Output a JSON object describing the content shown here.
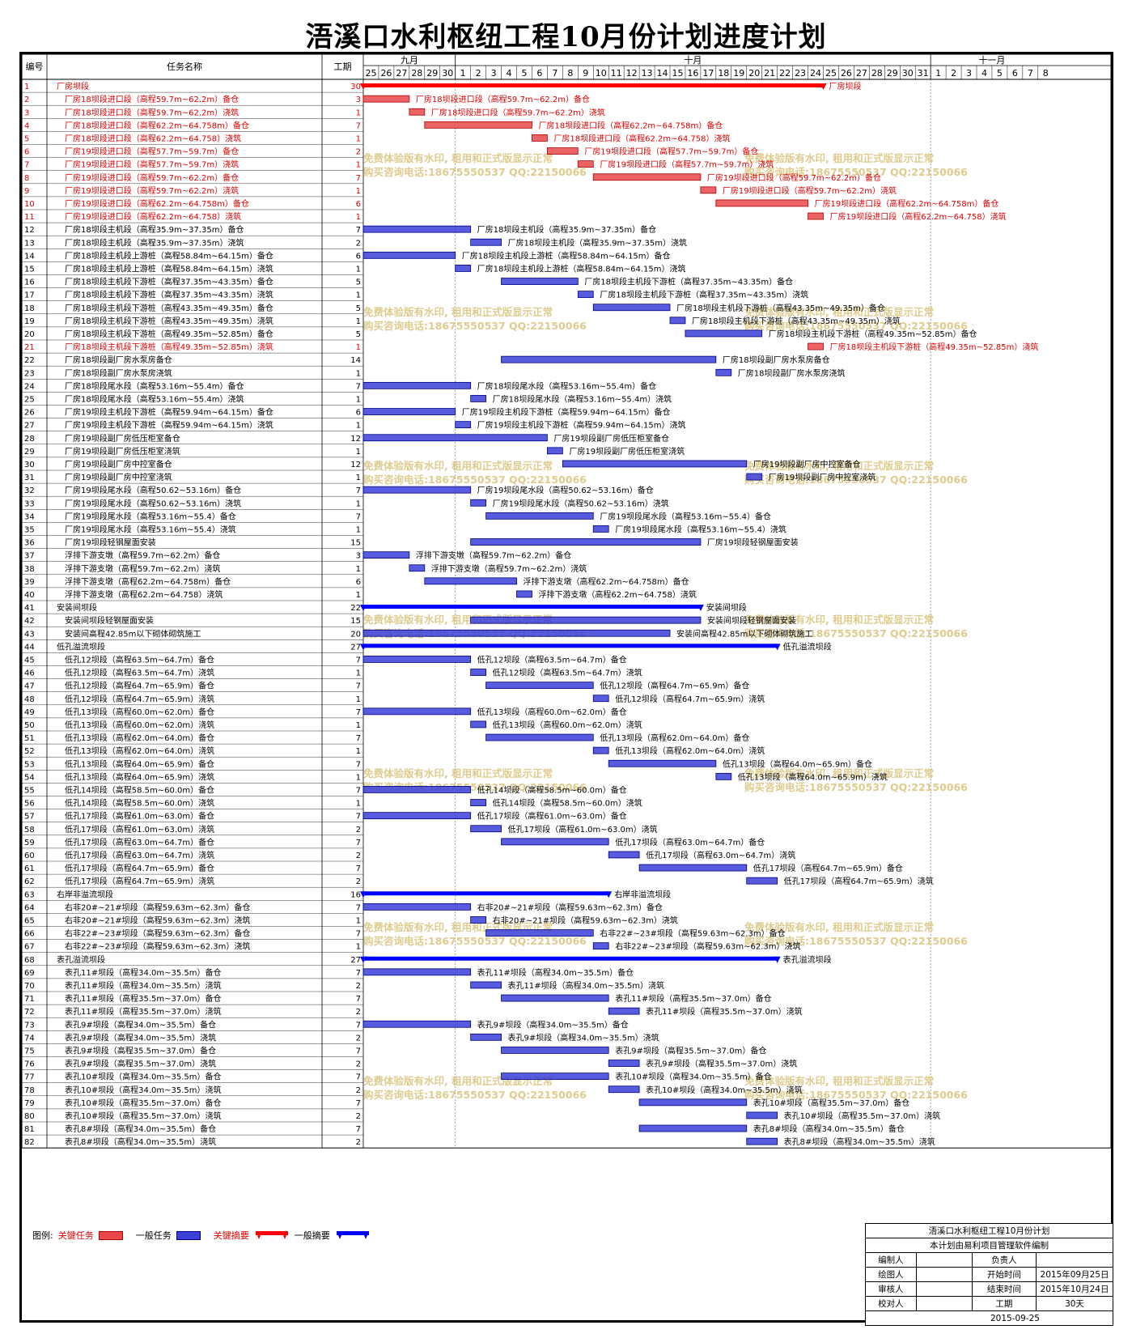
{
  "title": "浯溪口水利枢纽工程10月份计划进度计划",
  "header": {
    "col_id": "编号",
    "col_name": "任务名称",
    "col_duration": "工期",
    "months": [
      {
        "label": "九月",
        "start_day": 0,
        "len": 6
      },
      {
        "label": "十月",
        "start_day": 6,
        "len": 31
      },
      {
        "label": "十一月",
        "start_day": 37,
        "len": 8
      }
    ],
    "days": [
      "25",
      "26",
      "27",
      "28",
      "29",
      "30",
      "1",
      "2",
      "3",
      "4",
      "5",
      "6",
      "7",
      "8",
      "9",
      "10",
      "11",
      "12",
      "13",
      "14",
      "15",
      "16",
      "17",
      "18",
      "19",
      "20",
      "21",
      "22",
      "23",
      "24",
      "25",
      "26",
      "27",
      "28",
      "29",
      "30",
      "31",
      "1",
      "2",
      "3",
      "4",
      "5",
      "6",
      "7",
      "8"
    ]
  },
  "colors": {
    "critical_task": "#e8484a",
    "normal_task": "#3a3fd8",
    "critical_summary": "#ff0000",
    "normal_summary": "#0000ff",
    "critical_text": "#e00000",
    "normal_text": "#000000",
    "watermark": "#d9c27a"
  },
  "watermark": {
    "line1": "免费体验版有水印, 租用和正式版显示正常",
    "line2": "购买咨询电话:18675550537 QQ:22150066"
  },
  "chart_data": {
    "type": "gantt",
    "title": "浯溪口水利枢纽工程10月份计划进度计划",
    "start_date": "2015-09-25",
    "tasks": [
      {
        "id": "1",
        "name": "厂房坝段",
        "dur": 30,
        "start": 0,
        "len": 30,
        "kind": "summary",
        "crit": true,
        "indent": 0,
        "label": "厂房坝段"
      },
      {
        "id": "2",
        "name": "厂房18坝段进口段（高程59.7m~62.2m）备仓",
        "dur": 3,
        "start": 0,
        "len": 3,
        "kind": "task",
        "crit": true,
        "indent": 1
      },
      {
        "id": "3",
        "name": "厂房18坝段进口段（高程59.7m~62.2m）浇筑",
        "dur": 1,
        "start": 3,
        "len": 1,
        "kind": "task",
        "crit": true,
        "indent": 1
      },
      {
        "id": "4",
        "name": "厂房18坝段进口段（高程62.2m~64.758m）备仓",
        "dur": 7,
        "start": 4,
        "len": 7,
        "kind": "task",
        "crit": true,
        "indent": 1
      },
      {
        "id": "5",
        "name": "厂房18坝段进口段（高程62.2m~64.758）浇筑",
        "dur": 1,
        "start": 11,
        "len": 1,
        "kind": "task",
        "crit": true,
        "indent": 1
      },
      {
        "id": "6",
        "name": "厂房19坝段进口段（高程57.7m~59.7m）备仓",
        "dur": 2,
        "start": 12,
        "len": 2,
        "kind": "task",
        "crit": true,
        "indent": 1
      },
      {
        "id": "7",
        "name": "厂房19坝段进口段（高程57.7m~59.7m）浇筑",
        "dur": 1,
        "start": 14,
        "len": 1,
        "kind": "task",
        "crit": true,
        "indent": 1
      },
      {
        "id": "8",
        "name": "厂房19坝段进口段（高程59.7m~62.2m）备仓",
        "dur": 7,
        "start": 15,
        "len": 7,
        "kind": "task",
        "crit": true,
        "indent": 1
      },
      {
        "id": "9",
        "name": "厂房19坝段进口段（高程59.7m~62.2m）浇筑",
        "dur": 1,
        "start": 22,
        "len": 1,
        "kind": "task",
        "crit": true,
        "indent": 1
      },
      {
        "id": "10",
        "name": "厂房19坝段进口段（高程62.2m~64.758m）备仓",
        "dur": 6,
        "start": 23,
        "len": 6,
        "kind": "task",
        "crit": true,
        "indent": 1
      },
      {
        "id": "11",
        "name": "厂房19坝段进口段（高程62.2m~64.758）浇筑",
        "dur": 1,
        "start": 29,
        "len": 1,
        "kind": "task",
        "crit": true,
        "indent": 1
      },
      {
        "id": "12",
        "name": "厂房18坝段主机段（高程35.9m~37.35m）备仓",
        "dur": 7,
        "start": 0,
        "len": 7,
        "kind": "task",
        "crit": false,
        "indent": 1
      },
      {
        "id": "13",
        "name": "厂房18坝段主机段（高程35.9m~37.35m）浇筑",
        "dur": 2,
        "start": 7,
        "len": 2,
        "kind": "task",
        "crit": false,
        "indent": 1
      },
      {
        "id": "14",
        "name": "厂房18坝段主机段上游桩（高程58.84m~64.15m）备仓",
        "dur": 6,
        "start": 0,
        "len": 6,
        "kind": "task",
        "crit": false,
        "indent": 1
      },
      {
        "id": "15",
        "name": "厂房18坝段主机段上游桩（高程58.84m~64.15m）浇筑",
        "dur": 1,
        "start": 6,
        "len": 1,
        "kind": "task",
        "crit": false,
        "indent": 1
      },
      {
        "id": "16",
        "name": "厂房18坝段主机段下游桩（高程37.35m~43.35m）备仓",
        "dur": 5,
        "start": 9,
        "len": 5,
        "kind": "task",
        "crit": false,
        "indent": 1
      },
      {
        "id": "17",
        "name": "厂房18坝段主机段下游桩（高程37.35m~43.35m）浇筑",
        "dur": 1,
        "start": 14,
        "len": 1,
        "kind": "task",
        "crit": false,
        "indent": 1
      },
      {
        "id": "18",
        "name": "厂房18坝段主机段下游桩（高程43.35m~49.35m）备仓",
        "dur": 5,
        "start": 15,
        "len": 5,
        "kind": "task",
        "crit": false,
        "indent": 1
      },
      {
        "id": "19",
        "name": "厂房18坝段主机段下游桩（高程43.35m~49.35m）浇筑",
        "dur": 1,
        "start": 20,
        "len": 1,
        "kind": "task",
        "crit": false,
        "indent": 1
      },
      {
        "id": "20",
        "name": "厂房18坝段主机段下游桩（高程49.35m~52.85m）备仓",
        "dur": 5,
        "start": 21,
        "len": 5,
        "kind": "task",
        "crit": false,
        "indent": 1
      },
      {
        "id": "21",
        "name": "厂房18坝段主机段下游桩（高程49.35m~52.85m）浇筑",
        "dur": 1,
        "start": 29,
        "len": 1,
        "kind": "task",
        "crit": true,
        "indent": 1
      },
      {
        "id": "22",
        "name": "厂房18坝段副厂房水泵房备仓",
        "dur": 14,
        "start": 9,
        "len": 14,
        "kind": "task",
        "crit": false,
        "indent": 1
      },
      {
        "id": "23",
        "name": "厂房18坝段副厂房水泵房浇筑",
        "dur": 1,
        "start": 23,
        "len": 1,
        "kind": "task",
        "crit": false,
        "indent": 1
      },
      {
        "id": "24",
        "name": "厂房18坝段尾水段（高程53.16m~55.4m）备仓",
        "dur": 7,
        "start": 0,
        "len": 7,
        "kind": "task",
        "crit": false,
        "indent": 1
      },
      {
        "id": "25",
        "name": "厂房18坝段尾水段（高程53.16m~55.4m）浇筑",
        "dur": 1,
        "start": 7,
        "len": 1,
        "kind": "task",
        "crit": false,
        "indent": 1
      },
      {
        "id": "26",
        "name": "厂房19坝段主机段下游桩（高程59.94m~64.15m）备仓",
        "dur": 6,
        "start": 0,
        "len": 6,
        "kind": "task",
        "crit": false,
        "indent": 1
      },
      {
        "id": "27",
        "name": "厂房19坝段主机段下游桩（高程59.94m~64.15m）浇筑",
        "dur": 1,
        "start": 6,
        "len": 1,
        "kind": "task",
        "crit": false,
        "indent": 1
      },
      {
        "id": "28",
        "name": "厂房19坝段副厂房低压柜室备仓",
        "dur": 12,
        "start": 0,
        "len": 12,
        "kind": "task",
        "crit": false,
        "indent": 1
      },
      {
        "id": "29",
        "name": "厂房19坝段副厂房低压柜室浇筑",
        "dur": 1,
        "start": 12,
        "len": 1,
        "kind": "task",
        "crit": false,
        "indent": 1
      },
      {
        "id": "30",
        "name": "厂房19坝段副厂房中控室备仓",
        "dur": 12,
        "start": 13,
        "len": 12,
        "kind": "task",
        "crit": false,
        "indent": 1
      },
      {
        "id": "31",
        "name": "厂房19坝段副厂房中控室浇筑",
        "dur": 1,
        "start": 25,
        "len": 1,
        "kind": "task",
        "crit": false,
        "indent": 1
      },
      {
        "id": "32",
        "name": "厂房19坝段尾水段（高程50.62~53.16m）备仓",
        "dur": 7,
        "start": 0,
        "len": 7,
        "kind": "task",
        "crit": false,
        "indent": 1
      },
      {
        "id": "33",
        "name": "厂房19坝段尾水段（高程50.62~53.16m）浇筑",
        "dur": 1,
        "start": 7,
        "len": 1,
        "kind": "task",
        "crit": false,
        "indent": 1
      },
      {
        "id": "34",
        "name": "厂房19坝段尾水段（高程53.16m~55.4）备仓",
        "dur": 7,
        "start": 8,
        "len": 7,
        "kind": "task",
        "crit": false,
        "indent": 1
      },
      {
        "id": "35",
        "name": "厂房19坝段尾水段（高程53.16m~55.4）浇筑",
        "dur": 1,
        "start": 15,
        "len": 1,
        "kind": "task",
        "crit": false,
        "indent": 1
      },
      {
        "id": "36",
        "name": "厂房19坝段轻钢屋面安装",
        "dur": 15,
        "start": 7,
        "len": 15,
        "kind": "task",
        "crit": false,
        "indent": 1
      },
      {
        "id": "37",
        "name": "浮排下游支墩（高程59.7m~62.2m）备仓",
        "dur": 3,
        "start": 0,
        "len": 3,
        "kind": "task",
        "crit": false,
        "indent": 1
      },
      {
        "id": "38",
        "name": "浮排下游支墩（高程59.7m~62.2m）浇筑",
        "dur": 1,
        "start": 3,
        "len": 1,
        "kind": "task",
        "crit": false,
        "indent": 1
      },
      {
        "id": "39",
        "name": "浮排下游支墩（高程62.2m~64.758m）备仓",
        "dur": 6,
        "start": 4,
        "len": 6,
        "kind": "task",
        "crit": false,
        "indent": 1
      },
      {
        "id": "40",
        "name": "浮排下游支墩（高程62.2m~64.758）浇筑",
        "dur": 1,
        "start": 10,
        "len": 1,
        "kind": "task",
        "crit": false,
        "indent": 1
      },
      {
        "id": "41",
        "name": "安装间坝段",
        "dur": 22,
        "start": 0,
        "len": 22,
        "kind": "summary",
        "crit": false,
        "indent": 0,
        "label": "安装间坝段"
      },
      {
        "id": "42",
        "name": "安装间坝段轻钢屋面安装",
        "dur": 15,
        "start": 7,
        "len": 15,
        "kind": "task",
        "crit": false,
        "indent": 1
      },
      {
        "id": "43",
        "name": "安装间高程42.85m以下砌体砌筑施工",
        "dur": 20,
        "start": 0,
        "len": 20,
        "kind": "task",
        "crit": false,
        "indent": 1
      },
      {
        "id": "44",
        "name": "低孔溢流坝段",
        "dur": 27,
        "start": 0,
        "len": 27,
        "kind": "summary",
        "crit": false,
        "indent": 0,
        "label": "低孔溢流坝段"
      },
      {
        "id": "45",
        "name": "低孔12坝段（高程63.5m~64.7m）备仓",
        "dur": 7,
        "start": 0,
        "len": 7,
        "kind": "task",
        "crit": false,
        "indent": 1
      },
      {
        "id": "46",
        "name": "低孔12坝段（高程63.5m~64.7m）浇筑",
        "dur": 1,
        "start": 7,
        "len": 1,
        "kind": "task",
        "crit": false,
        "indent": 1
      },
      {
        "id": "47",
        "name": "低孔12坝段（高程64.7m~65.9m）备仓",
        "dur": 7,
        "start": 8,
        "len": 7,
        "kind": "task",
        "crit": false,
        "indent": 1
      },
      {
        "id": "48",
        "name": "低孔12坝段（高程64.7m~65.9m）浇筑",
        "dur": 1,
        "start": 15,
        "len": 1,
        "kind": "task",
        "crit": false,
        "indent": 1
      },
      {
        "id": "49",
        "name": "低孔13坝段（高程60.0m~62.0m）备仓",
        "dur": 7,
        "start": 0,
        "len": 7,
        "kind": "task",
        "crit": false,
        "indent": 1
      },
      {
        "id": "50",
        "name": "低孔13坝段（高程60.0m~62.0m）浇筑",
        "dur": 1,
        "start": 7,
        "len": 1,
        "kind": "task",
        "crit": false,
        "indent": 1
      },
      {
        "id": "51",
        "name": "低孔13坝段（高程62.0m~64.0m）备仓",
        "dur": 7,
        "start": 8,
        "len": 7,
        "kind": "task",
        "crit": false,
        "indent": 1
      },
      {
        "id": "52",
        "name": "低孔13坝段（高程62.0m~64.0m）浇筑",
        "dur": 1,
        "start": 15,
        "len": 1,
        "kind": "task",
        "crit": false,
        "indent": 1
      },
      {
        "id": "53",
        "name": "低孔13坝段（高程64.0m~65.9m）备仓",
        "dur": 7,
        "start": 16,
        "len": 7,
        "kind": "task",
        "crit": false,
        "indent": 1
      },
      {
        "id": "54",
        "name": "低孔13坝段（高程64.0m~65.9m）浇筑",
        "dur": 1,
        "start": 23,
        "len": 1,
        "kind": "task",
        "crit": false,
        "indent": 1
      },
      {
        "id": "55",
        "name": "低孔14坝段（高程58.5m~60.0m）备仓",
        "dur": 7,
        "start": 0,
        "len": 7,
        "kind": "task",
        "crit": false,
        "indent": 1
      },
      {
        "id": "56",
        "name": "低孔14坝段（高程58.5m~60.0m）浇筑",
        "dur": 1,
        "start": 7,
        "len": 1,
        "kind": "task",
        "crit": false,
        "indent": 1
      },
      {
        "id": "57",
        "name": "低孔17坝段（高程61.0m~63.0m）备仓",
        "dur": 7,
        "start": 0,
        "len": 7,
        "kind": "task",
        "crit": false,
        "indent": 1
      },
      {
        "id": "58",
        "name": "低孔17坝段（高程61.0m~63.0m）浇筑",
        "dur": 2,
        "start": 7,
        "len": 2,
        "kind": "task",
        "crit": false,
        "indent": 1
      },
      {
        "id": "59",
        "name": "低孔17坝段（高程63.0m~64.7m）备仓",
        "dur": 7,
        "start": 9,
        "len": 7,
        "kind": "task",
        "crit": false,
        "indent": 1
      },
      {
        "id": "60",
        "name": "低孔17坝段（高程63.0m~64.7m）浇筑",
        "dur": 2,
        "start": 16,
        "len": 2,
        "kind": "task",
        "crit": false,
        "indent": 1
      },
      {
        "id": "61",
        "name": "低孔17坝段（高程64.7m~65.9m）备仓",
        "dur": 7,
        "start": 18,
        "len": 7,
        "kind": "task",
        "crit": false,
        "indent": 1
      },
      {
        "id": "62",
        "name": "低孔17坝段（高程64.7m~65.9m）浇筑",
        "dur": 2,
        "start": 25,
        "len": 2,
        "kind": "task",
        "crit": false,
        "indent": 1
      },
      {
        "id": "63",
        "name": "右岸非溢流坝段",
        "dur": 16,
        "start": 0,
        "len": 16,
        "kind": "summary",
        "crit": false,
        "indent": 0,
        "label": "右岸非溢流坝段"
      },
      {
        "id": "64",
        "name": "右非20#~21#坝段（高程59.63m~62.3m）备仓",
        "dur": 7,
        "start": 0,
        "len": 7,
        "kind": "task",
        "crit": false,
        "indent": 1
      },
      {
        "id": "65",
        "name": "右非20#~21#坝段（高程59.63m~62.3m）浇筑",
        "dur": 1,
        "start": 7,
        "len": 1,
        "kind": "task",
        "crit": false,
        "indent": 1
      },
      {
        "id": "66",
        "name": "右非22#~23#坝段（高程59.63m~62.3m）备仓",
        "dur": 7,
        "start": 8,
        "len": 7,
        "kind": "task",
        "crit": false,
        "indent": 1
      },
      {
        "id": "67",
        "name": "右非22#~23#坝段（高程59.63m~62.3m）浇筑",
        "dur": 1,
        "start": 15,
        "len": 1,
        "kind": "task",
        "crit": false,
        "indent": 1
      },
      {
        "id": "68",
        "name": "表孔溢流坝段",
        "dur": 27,
        "start": 0,
        "len": 27,
        "kind": "summary",
        "crit": false,
        "indent": 0,
        "label": "表孔溢流坝段"
      },
      {
        "id": "69",
        "name": "表孔11#坝段（高程34.0m~35.5m）备仓",
        "dur": 7,
        "start": 0,
        "len": 7,
        "kind": "task",
        "crit": false,
        "indent": 1
      },
      {
        "id": "70",
        "name": "表孔11#坝段（高程34.0m~35.5m）浇筑",
        "dur": 2,
        "start": 7,
        "len": 2,
        "kind": "task",
        "crit": false,
        "indent": 1
      },
      {
        "id": "71",
        "name": "表孔11#坝段（高程35.5m~37.0m）备仓",
        "dur": 7,
        "start": 9,
        "len": 7,
        "kind": "task",
        "crit": false,
        "indent": 1
      },
      {
        "id": "72",
        "name": "表孔11#坝段（高程35.5m~37.0m）浇筑",
        "dur": 2,
        "start": 16,
        "len": 2,
        "kind": "task",
        "crit": false,
        "indent": 1
      },
      {
        "id": "73",
        "name": "表孔9#坝段（高程34.0m~35.5m）备仓",
        "dur": 7,
        "start": 0,
        "len": 7,
        "kind": "task",
        "crit": false,
        "indent": 1
      },
      {
        "id": "74",
        "name": "表孔9#坝段（高程34.0m~35.5m）浇筑",
        "dur": 2,
        "start": 7,
        "len": 2,
        "kind": "task",
        "crit": false,
        "indent": 1
      },
      {
        "id": "75",
        "name": "表孔9#坝段（高程35.5m~37.0m）备仓",
        "dur": 7,
        "start": 9,
        "len": 7,
        "kind": "task",
        "crit": false,
        "indent": 1
      },
      {
        "id": "76",
        "name": "表孔9#坝段（高程35.5m~37.0m）浇筑",
        "dur": 2,
        "start": 16,
        "len": 2,
        "kind": "task",
        "crit": false,
        "indent": 1
      },
      {
        "id": "77",
        "name": "表孔10#坝段（高程34.0m~35.5m）备仓",
        "dur": 7,
        "start": 9,
        "len": 7,
        "kind": "task",
        "crit": false,
        "indent": 1
      },
      {
        "id": "78",
        "name": "表孔10#坝段（高程34.0m~35.5m）浇筑",
        "dur": 2,
        "start": 16,
        "len": 2,
        "kind": "task",
        "crit": false,
        "indent": 1
      },
      {
        "id": "79",
        "name": "表孔10#坝段（高程35.5m~37.0m）备仓",
        "dur": 7,
        "start": 18,
        "len": 7,
        "kind": "task",
        "crit": false,
        "indent": 1
      },
      {
        "id": "80",
        "name": "表孔10#坝段（高程35.5m~37.0m）浇筑",
        "dur": 2,
        "start": 25,
        "len": 2,
        "kind": "task",
        "crit": false,
        "indent": 1
      },
      {
        "id": "81",
        "name": "表孔8#坝段（高程34.0m~35.5m）备仓",
        "dur": 7,
        "start": 18,
        "len": 7,
        "kind": "task",
        "crit": false,
        "indent": 1
      },
      {
        "id": "82",
        "name": "表孔8#坝段（高程34.0m~35.5m）浇筑",
        "dur": 2,
        "start": 25,
        "len": 2,
        "kind": "task",
        "crit": false,
        "indent": 1
      }
    ]
  },
  "legend": {
    "title": "图例:",
    "items": [
      {
        "label": "关键任务",
        "kind": "critical_task"
      },
      {
        "label": "一般任务",
        "kind": "normal_task"
      },
      {
        "label": "关键摘要",
        "kind": "critical_summary"
      },
      {
        "label": "一般摘要",
        "kind": "normal_summary"
      }
    ]
  },
  "footer": {
    "title": "浯溪口水利枢纽工程10月份计划",
    "subtitle": "本计划由易利项目管理软件编制",
    "rows": [
      [
        "编制人",
        "",
        "负责人",
        ""
      ],
      [
        "绘图人",
        "",
        "开始时间",
        "2015年09月25日"
      ],
      [
        "审核人",
        "",
        "结束时间",
        "2015年10月24日"
      ],
      [
        "校对人",
        "",
        "工期",
        "30天"
      ]
    ],
    "date": "2015-09-25"
  }
}
